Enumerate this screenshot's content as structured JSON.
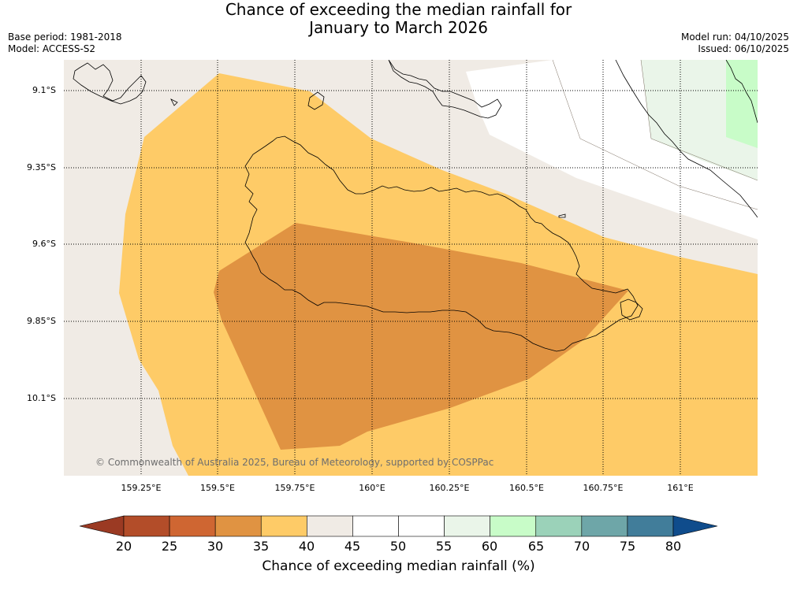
{
  "title": {
    "line1": "Chance of exceeding the median rainfall for",
    "line2": "January to March 2026"
  },
  "meta": {
    "base_period": "Base period: 1981-2018",
    "model": "Model: ACCESS-S2",
    "model_run": "Model run: 04/10/2025",
    "issued": "Issued: 06/10/2025"
  },
  "map": {
    "copyright": "© Commonwealth of Australia 2025, Bureau of Meteorology, supported by COSPPac",
    "lat_labels": [
      "9.1°S",
      "9.35°S",
      "9.6°S",
      "9.85°S",
      "10.1°S"
    ],
    "lon_labels": [
      "159.25°E",
      "159.5°E",
      "159.75°E",
      "160°E",
      "160.25°E",
      "160.5°E",
      "160.75°E",
      "161°E"
    ],
    "region_colors": {
      "below_35": "#e09342",
      "range_35_40": "#fecb67",
      "range_40_45": "#f0ebe5",
      "range_45_55": "#ffffff",
      "range_55_60": "#eaf5e9",
      "range_60_65": "#c8fcc8"
    }
  },
  "colorbar": {
    "title": "Chance of exceeding median rainfall (%)",
    "ticks": [
      "20",
      "25",
      "30",
      "35",
      "40",
      "45",
      "50",
      "55",
      "60",
      "65",
      "70",
      "75",
      "80"
    ],
    "colors": [
      "#9b3a23",
      "#b34d29",
      "#cf6632",
      "#e09342",
      "#fecb67",
      "#f0ebe5",
      "#ffffff",
      "#ffffff",
      "#eaf5e9",
      "#c8fcc8",
      "#9bd2b9",
      "#6ea6a8",
      "#417d9a",
      "#0f4c8c"
    ]
  }
}
